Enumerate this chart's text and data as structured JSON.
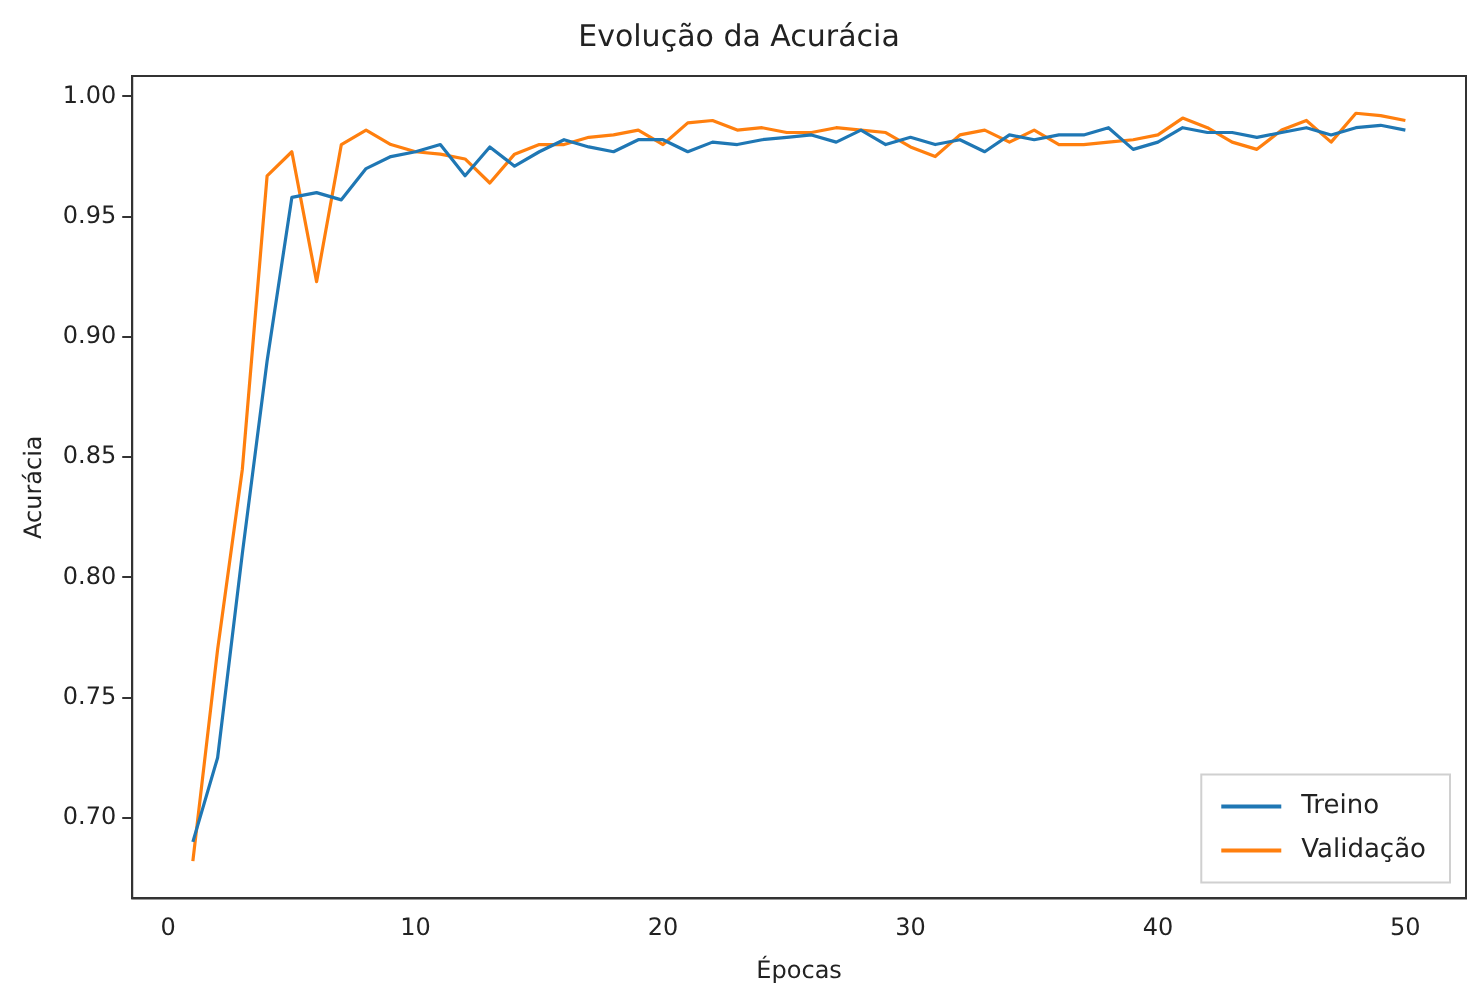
{
  "chart_data": {
    "type": "line",
    "title": "Evolução da Acurácia",
    "xlabel": "Épocas",
    "ylabel": "Acurácia",
    "x": [
      1,
      2,
      3,
      4,
      5,
      6,
      7,
      8,
      9,
      10,
      11,
      12,
      13,
      14,
      15,
      16,
      17,
      18,
      19,
      20,
      21,
      22,
      23,
      24,
      25,
      26,
      27,
      28,
      29,
      30,
      31,
      32,
      33,
      34,
      35,
      36,
      37,
      38,
      39,
      40,
      41,
      42,
      43,
      44,
      45,
      46,
      47,
      48,
      49,
      50
    ],
    "series": [
      {
        "name": "Treino",
        "color": "#1f77b4",
        "values": [
          0.69,
          0.725,
          0.81,
          0.89,
          0.958,
          0.96,
          0.957,
          0.97,
          0.975,
          0.977,
          0.98,
          0.967,
          0.979,
          0.971,
          0.977,
          0.982,
          0.979,
          0.977,
          0.982,
          0.982,
          0.977,
          0.981,
          0.98,
          0.982,
          0.983,
          0.984,
          0.981,
          0.986,
          0.98,
          0.983,
          0.98,
          0.982,
          0.977,
          0.984,
          0.982,
          0.984,
          0.984,
          0.987,
          0.978,
          0.981,
          0.987,
          0.985,
          0.985,
          0.983,
          0.985,
          0.987,
          0.984,
          0.987,
          0.988,
          0.986
        ]
      },
      {
        "name": "Validação",
        "color": "#ff7f0e",
        "values": [
          0.682,
          0.77,
          0.845,
          0.967,
          0.977,
          0.923,
          0.98,
          0.986,
          0.98,
          0.977,
          0.976,
          0.974,
          0.964,
          0.976,
          0.98,
          0.98,
          0.983,
          0.984,
          0.986,
          0.98,
          0.989,
          0.99,
          0.986,
          0.987,
          0.985,
          0.985,
          0.987,
          0.986,
          0.985,
          0.979,
          0.975,
          0.984,
          0.986,
          0.981,
          0.986,
          0.98,
          0.98,
          0.981,
          0.982,
          0.984,
          0.991,
          0.987,
          0.981,
          0.978,
          0.986,
          0.99,
          0.981,
          0.993,
          0.992,
          0.99
        ]
      }
    ],
    "xlim": [
      -1.45,
      52.45
    ],
    "xticks": [
      0,
      10,
      20,
      30,
      40,
      50
    ],
    "ylim": [
      0.6665,
      1.0085
    ],
    "yticks": [
      {
        "value": 0.7,
        "label": "0.70"
      },
      {
        "value": 0.75,
        "label": "0.75"
      },
      {
        "value": 0.8,
        "label": "0.80"
      },
      {
        "value": 0.85,
        "label": "0.85"
      },
      {
        "value": 0.9,
        "label": "0.90"
      },
      {
        "value": 0.95,
        "label": "0.95"
      },
      {
        "value": 1.0,
        "label": "1.00"
      }
    ],
    "grid": false,
    "legend": "bottom right",
    "marker": "none",
    "line_style": "solid"
  }
}
